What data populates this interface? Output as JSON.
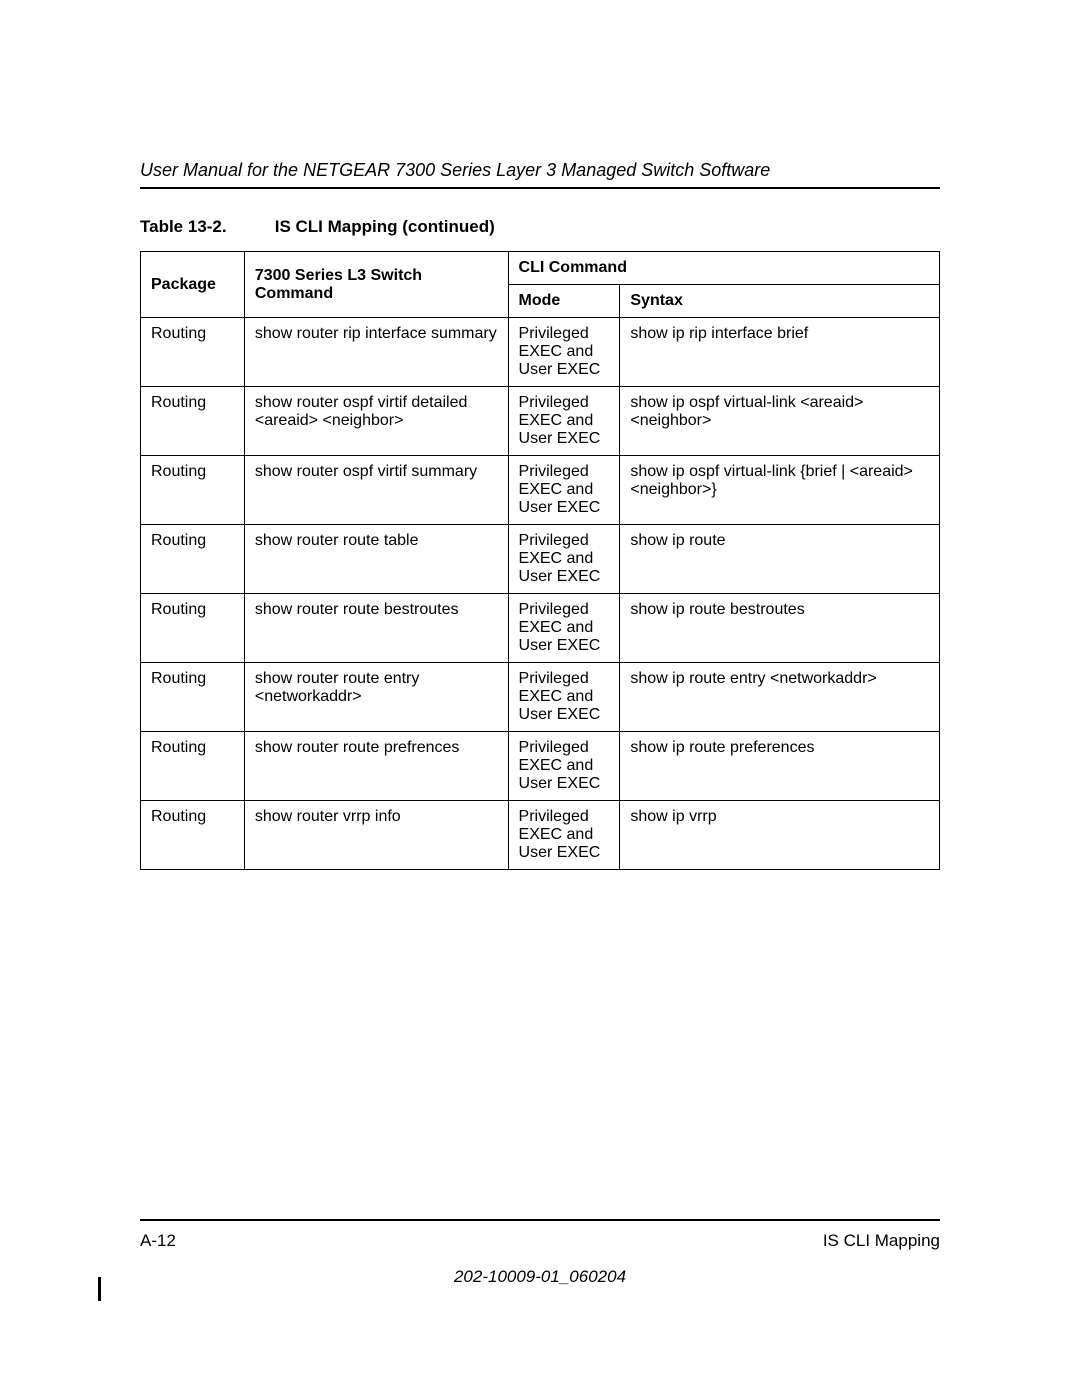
{
  "header": {
    "title": "User Manual for the NETGEAR 7300 Series Layer 3 Managed Switch Software"
  },
  "caption": {
    "label": "Table 13-2.",
    "title": "IS CLI Mapping  (continued)"
  },
  "columns": {
    "package": "Package",
    "command": "7300 Series L3 Switch Command",
    "cli_group": "CLI Command",
    "mode": "Mode",
    "syntax": "Syntax"
  },
  "mode_text": "Privileged EXEC and User EXEC",
  "rows": [
    {
      "package": "Routing",
      "command": "show router rip interface summary",
      "syntax": "show ip rip interface brief"
    },
    {
      "package": "Routing",
      "command": "show router ospf virtif detailed <areaid> <neighbor>",
      "syntax": "show ip ospf virtual-link <areaid> <neighbor>"
    },
    {
      "package": "Routing",
      "command": "show router ospf virtif summary",
      "syntax": "show ip ospf virtual-link {brief | <areaid> <neighbor>}"
    },
    {
      "package": "Routing",
      "command": "show router route table",
      "syntax": "show ip route"
    },
    {
      "package": "Routing",
      "command": "show router route bestroutes",
      "syntax": "show ip route bestroutes"
    },
    {
      "package": "Routing",
      "command": "show router route entry <networkaddr>",
      "syntax": "show ip route entry <networkaddr>"
    },
    {
      "package": "Routing",
      "command": "show router route prefrences",
      "syntax": "show ip route preferences"
    },
    {
      "package": "Routing",
      "command": "show router vrrp info",
      "syntax": "show ip vrrp"
    }
  ],
  "footer": {
    "page_num": "A-12",
    "section": "IS CLI Mapping",
    "doc_id": "202-10009-01_060204"
  }
}
